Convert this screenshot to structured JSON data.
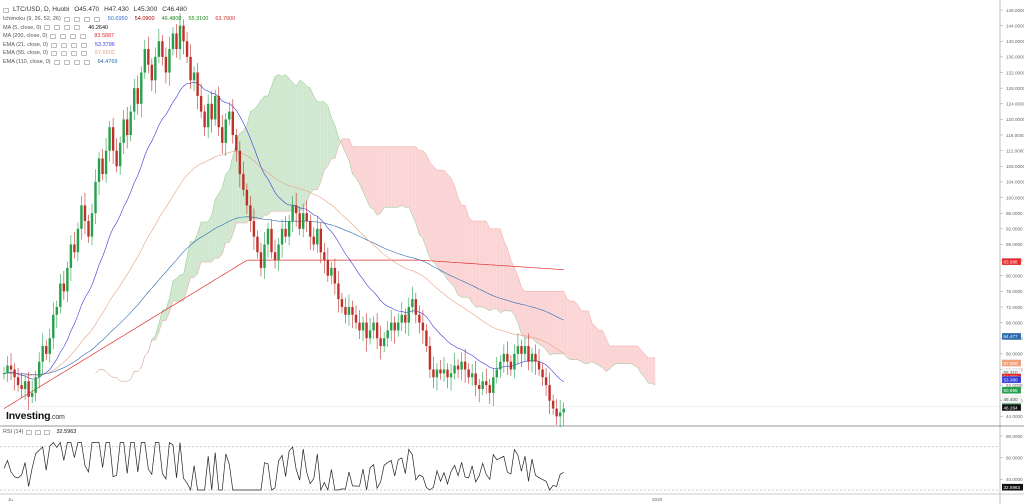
{
  "symbol_line": {
    "symbol": "LTC/USD, D, Huobi",
    "open": "O45.470",
    "high": "H47.430",
    "low": "L45.300",
    "close": "C46.480"
  },
  "indicators": [
    {
      "label": "Ichimoku (9, 26, 52, 26)",
      "values": [
        "50.6950",
        "54.0900",
        "46.4800",
        "55.3100",
        "63.7900"
      ],
      "colors": [
        "#2f6fd0",
        "#b00000",
        "#1a8a1a",
        "#1a8a1a",
        "#d03030"
      ]
    },
    {
      "label": "MA (5, close, 0)",
      "values": [
        "46.2640"
      ],
      "colors": [
        "#111111"
      ]
    },
    {
      "label": "MA (200, close, 0)",
      "values": [
        "83.5887"
      ],
      "colors": [
        "#e03030"
      ]
    },
    {
      "label": "EMA (21, close, 0)",
      "values": [
        "53.3796"
      ],
      "colors": [
        "#3a3ad6"
      ]
    },
    {
      "label": "EMA (55, close, 0)",
      "values": [
        "57.6502"
      ],
      "colors": [
        "#e8a080"
      ]
    },
    {
      "label": "EMA (110, close, 0)",
      "values": [
        "64.4769"
      ],
      "colors": [
        "#2a6ab0"
      ]
    }
  ],
  "brand": {
    "name": "Investing",
    "suffix": ".com"
  },
  "rsi": {
    "label": "RSI (14)",
    "value": "32.5963"
  },
  "chart_data": {
    "type": "line",
    "title": "LTC/USD, D, Huobi",
    "price_axis": {
      "ticks": [
        "148.0000",
        "144.0000",
        "140.0000",
        "136.0000",
        "132.0000",
        "128.0000",
        "124.0000",
        "120.0000",
        "116.0000",
        "112.0000",
        "108.0000",
        "104.0000",
        "100.0000",
        "96.0000",
        "92.0000",
        "88.0000",
        "84.0000",
        "80.0000",
        "76.0000",
        "72.0000",
        "68.0000",
        "64.0000",
        "60.0000",
        "56.0000",
        "52.0000",
        "48.0000",
        "44.0000",
        "40.0000"
      ],
      "ylim": [
        40,
        148
      ]
    },
    "rsi_axis": {
      "ticks": [
        "80.0000",
        "60.0000",
        "40.0000"
      ],
      "ylim": [
        30,
        80
      ],
      "levels": [
        70,
        30
      ]
    },
    "time_axis": {
      "labels": [
        "Ju",
        "2020"
      ]
    },
    "price_tags": [
      {
        "value": 83.588,
        "text": "83.588",
        "bg": "#e8262a",
        "fg": "#ffffff"
      },
      {
        "value": 64.477,
        "text": "64.477",
        "bg": "#2a6ab0",
        "fg": "#ffffff"
      },
      {
        "value": 57.65,
        "text": "57.650",
        "bg": "#f2a07b",
        "fg": "#ffffff"
      },
      {
        "value": 55.31,
        "text": "55.310",
        "bg": "#f4f4f4",
        "fg": "#555555"
      },
      {
        "value": 54.09,
        "text": "54.090",
        "bg": "#e8262a",
        "fg": "#ffffff"
      },
      {
        "value": 53.38,
        "text": "53.380",
        "bg": "#2f3bd6",
        "fg": "#ffffff"
      },
      {
        "value": 50.695,
        "text": "50.695",
        "bg": "#26a04a",
        "fg": "#ffffff"
      },
      {
        "value": 48.4,
        "text": "48.400",
        "bg": "#f4f4f4",
        "fg": "#555555"
      },
      {
        "value": 46.48,
        "text": "46.480",
        "bg": "#1ba34f",
        "fg": "#ffffff"
      },
      {
        "value": 46.264,
        "text": "46.264",
        "bg": "#111111",
        "fg": "#ffffff"
      }
    ],
    "rsi_tag": {
      "value": 32.5963,
      "text": "32.5963",
      "bg": "#111111",
      "fg": "#ffffff"
    },
    "closes": [
      55,
      57,
      56,
      54,
      52,
      51,
      53,
      49,
      50,
      54,
      58,
      62,
      60,
      64,
      70,
      72,
      78,
      76,
      82,
      88,
      86,
      92,
      98,
      94,
      90,
      96,
      104,
      110,
      106,
      112,
      118,
      112,
      108,
      114,
      120,
      116,
      122,
      128,
      124,
      132,
      138,
      134,
      130,
      136,
      140,
      136,
      132,
      138,
      142,
      138,
      144,
      140,
      136,
      130,
      132,
      126,
      122,
      118,
      124,
      120,
      126,
      118,
      114,
      120,
      122,
      116,
      112,
      106,
      102,
      98,
      94,
      90,
      86,
      82,
      88,
      92,
      86,
      84,
      88,
      92,
      90,
      94,
      98,
      96,
      92,
      96,
      94,
      90,
      88,
      92,
      86,
      84,
      80,
      82,
      78,
      74,
      72,
      70,
      72,
      70,
      68,
      66,
      68,
      64,
      66,
      68,
      64,
      62,
      64,
      66,
      68,
      66,
      68,
      70,
      68,
      72,
      74,
      70,
      68,
      66,
      62,
      56,
      54,
      56,
      55,
      56,
      54,
      55,
      57,
      56,
      58,
      56,
      54,
      55,
      52,
      51,
      53,
      52,
      50,
      54,
      56,
      58,
      60,
      58,
      56,
      60,
      62,
      60,
      62,
      58,
      60,
      58,
      56,
      54,
      52,
      48,
      46,
      44,
      45,
      46
    ],
    "colors": {
      "up": "#26a04a",
      "down": "#c0302a",
      "ma200": "#e03030",
      "ema21": "#3a3ad6",
      "ema55": "#e8a080",
      "ema110": "#2a6ab0",
      "cloud_bull": "#cfe8cf",
      "cloud_bear": "#fbd5d5",
      "rsi": "#222222"
    }
  }
}
